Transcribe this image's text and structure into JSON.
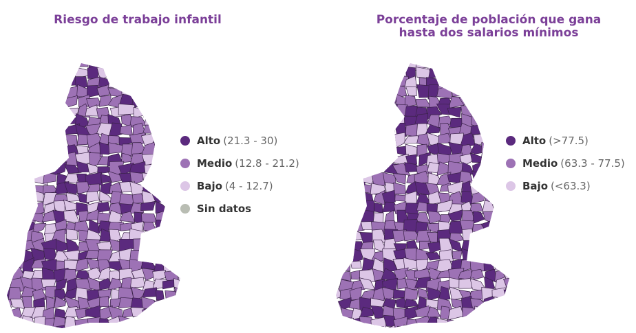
{
  "maps": [
    {
      "title": [
        "Riesgo de trabajo infantil"
      ],
      "legend": [
        {
          "label": "Alto",
          "range": "(21.3 - 30)"
        },
        {
          "label": "Medio",
          "range": "(12.8 - 21.2)"
        },
        {
          "label": "Bajo",
          "range": "(4 - 12.7)"
        },
        {
          "label": "Sin datos"
        }
      ]
    },
    {
      "title": [
        "Porcentaje de población que gana",
        "hasta dos salarios mínimos"
      ],
      "legend": [
        {
          "label": "Alto",
          "range": "(>77.5)"
        },
        {
          "label": "Medio",
          "range": "(63.3 - 77.5)"
        },
        {
          "label": "Bajo",
          "range": "(<63.3)"
        }
      ]
    }
  ]
}
